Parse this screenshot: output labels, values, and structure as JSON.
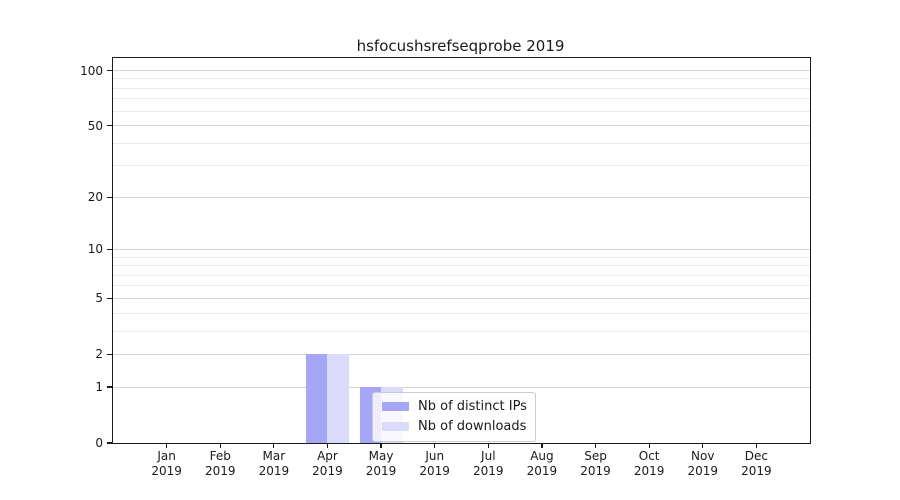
{
  "chart_data": {
    "type": "bar",
    "title": "hsfocushsrefseqprobe 2019",
    "categories": [
      "Jan",
      "Feb",
      "Mar",
      "Apr",
      "May",
      "Jun",
      "Jul",
      "Aug",
      "Sep",
      "Oct",
      "Nov",
      "Dec"
    ],
    "x_tick_year": "2019",
    "series": [
      {
        "name": "Nb of distinct IPs",
        "color": "#a6a6f6",
        "values": [
          0,
          0,
          0,
          2,
          1,
          0,
          0,
          0,
          0,
          0,
          0,
          0
        ]
      },
      {
        "name": "Nb of downloads",
        "color": "#dadafa",
        "values": [
          0,
          0,
          0,
          2,
          1,
          0,
          0,
          0,
          0,
          0,
          0,
          0
        ]
      }
    ],
    "xlabel": "",
    "ylabel": "",
    "y_scale": "log1p",
    "ylim": [
      0,
      117
    ],
    "y_major_ticks": [
      0,
      1,
      2,
      5,
      10,
      20,
      50,
      100
    ],
    "y_minor_gridlines": [
      3,
      4,
      6,
      7,
      8,
      9,
      30,
      40,
      60,
      70,
      80,
      90
    ],
    "grid": "horizontal",
    "legend_position": "lower center"
  },
  "colors": {
    "bar_distinct_ips": "#a6a6f6",
    "bar_downloads": "#dadafa",
    "major_gridline": "#d4d4d4",
    "minor_gridline": "#ebebeb",
    "axis_spine": "#1a1a1a",
    "text": "#1a1a1a",
    "legend_border": "#cccccc",
    "legend_background": "#ffffff"
  }
}
